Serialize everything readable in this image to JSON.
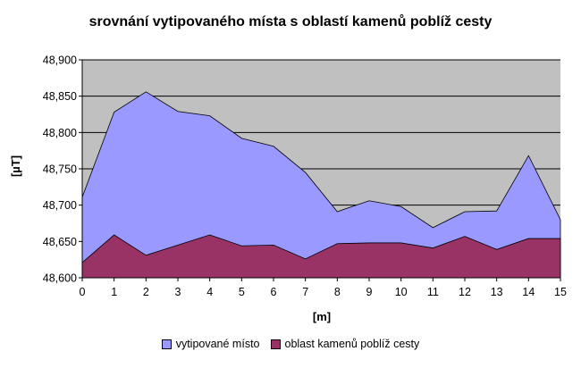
{
  "chart_data": {
    "type": "area",
    "title": "srovnání vytipovaného místa s oblastí kamenů poblíž cesty",
    "xlabel": "[m]",
    "ylabel": "[µT]",
    "x": [
      0,
      1,
      2,
      3,
      4,
      5,
      6,
      7,
      8,
      9,
      10,
      11,
      12,
      13,
      14,
      15
    ],
    "xlim": [
      0,
      15
    ],
    "ylim": [
      48.6,
      48.9
    ],
    "yticks": [
      "48,600",
      "48,650",
      "48,700",
      "48,750",
      "48,800",
      "48,850",
      "48,900"
    ],
    "xticks": [
      "0",
      "1",
      "2",
      "3",
      "4",
      "5",
      "6",
      "7",
      "8",
      "9",
      "10",
      "11",
      "12",
      "13",
      "14",
      "15"
    ],
    "grid": true,
    "plot_background": "#c0c0c0",
    "legend_position": "bottom",
    "series": [
      {
        "name": "vytipované místo",
        "color": "#9999ff",
        "values": [
          48.711,
          48.828,
          48.856,
          48.829,
          48.823,
          48.792,
          48.781,
          48.745,
          48.691,
          48.706,
          48.698,
          48.669,
          48.691,
          48.692,
          48.768,
          48.68
        ]
      },
      {
        "name": "oblast kamenů poblíž cesty",
        "color": "#993366",
        "values": [
          48.621,
          48.659,
          48.631,
          48.645,
          48.659,
          48.644,
          48.645,
          48.626,
          48.647,
          48.648,
          48.648,
          48.641,
          48.657,
          48.639,
          48.654,
          48.654
        ]
      }
    ]
  }
}
